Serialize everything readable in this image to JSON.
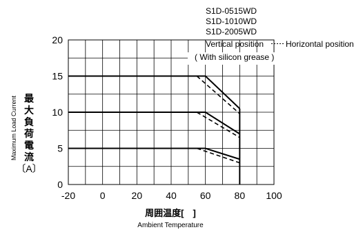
{
  "chart_data": {
    "type": "line",
    "title": "",
    "xlabel_jp": "周囲温度[　]",
    "xlabel_en": "Ambient Temperature",
    "ylabel_jp_chars": [
      "最",
      "大",
      "負",
      "荷",
      "電",
      "流"
    ],
    "ylabel_unit": "〔A〕",
    "ylabel_en": "Maximum Load Current",
    "xlim": [
      -20,
      100
    ],
    "ylim": [
      0,
      20
    ],
    "x_ticks": [
      "-20",
      "0",
      "20",
      "40",
      "60",
      "80",
      "100"
    ],
    "y_ticks": [
      "0",
      "5",
      "10",
      "15",
      "20"
    ],
    "grid": true,
    "models": [
      "S1D-0515WD",
      "S1D-1010WD",
      "S1D-2005WD"
    ],
    "legend": {
      "vertical": "Vertical position",
      "horizontal": "Horizontal position",
      "note": "( With silicon grease )",
      "placement": "top-right"
    },
    "series": [
      {
        "style": "solid",
        "x": [
          -20,
          60,
          80
        ],
        "y": [
          15,
          15,
          10.5
        ]
      },
      {
        "style": "dashed",
        "x": [
          55,
          80
        ],
        "y": [
          15,
          9.8
        ]
      },
      {
        "style": "solid",
        "x": [
          -20,
          60,
          80
        ],
        "y": [
          10,
          10,
          7
        ]
      },
      {
        "style": "dashed",
        "x": [
          55,
          80
        ],
        "y": [
          10,
          6.5
        ]
      },
      {
        "style": "solid",
        "x": [
          -20,
          60,
          80
        ],
        "y": [
          5,
          5,
          3.5
        ]
      },
      {
        "style": "dashed",
        "x": [
          55,
          80
        ],
        "y": [
          5,
          3
        ]
      },
      {
        "style": "solid",
        "x": [
          80,
          80
        ],
        "y": [
          0,
          10.5
        ]
      }
    ]
  }
}
